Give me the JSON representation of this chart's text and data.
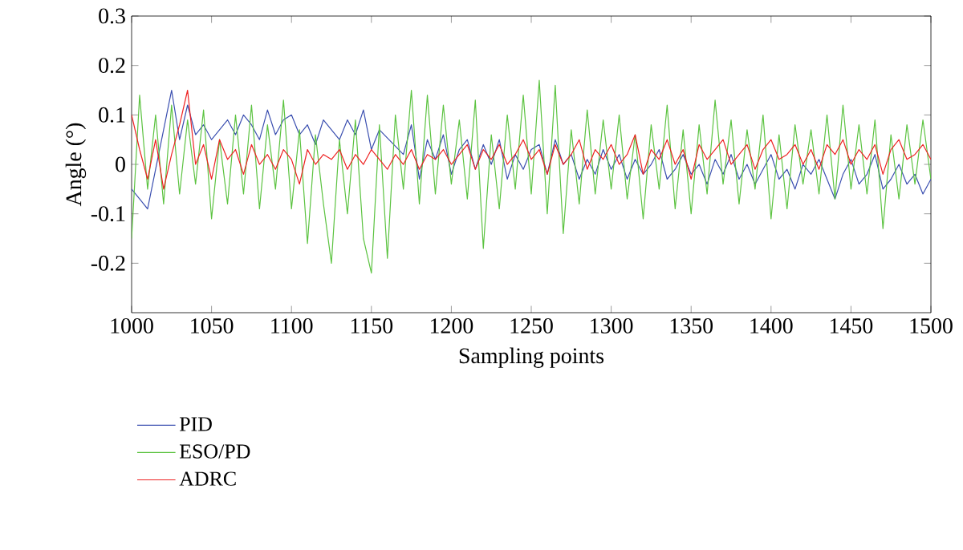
{
  "chart_data": {
    "type": "line",
    "xlabel": "Sampling points",
    "ylabel": "Angle (°)",
    "legend": "bottom",
    "xlim": [
      1000,
      1500
    ],
    "ylim": [
      -0.3,
      0.3
    ],
    "xticks": [
      1000,
      1050,
      1100,
      1150,
      1200,
      1250,
      1300,
      1350,
      1400,
      1450,
      1500
    ],
    "yticks": [
      -0.2,
      -0.1,
      0,
      0.1,
      0.2,
      0.3
    ],
    "x": [
      1000,
      1005,
      1010,
      1015,
      1020,
      1025,
      1030,
      1035,
      1040,
      1045,
      1050,
      1055,
      1060,
      1065,
      1070,
      1075,
      1080,
      1085,
      1090,
      1095,
      1100,
      1105,
      1110,
      1115,
      1120,
      1125,
      1130,
      1135,
      1140,
      1145,
      1150,
      1155,
      1160,
      1165,
      1170,
      1175,
      1180,
      1185,
      1190,
      1195,
      1200,
      1205,
      1210,
      1215,
      1220,
      1225,
      1230,
      1235,
      1240,
      1245,
      1250,
      1255,
      1260,
      1265,
      1270,
      1275,
      1280,
      1285,
      1290,
      1295,
      1300,
      1305,
      1310,
      1315,
      1320,
      1325,
      1330,
      1335,
      1340,
      1345,
      1350,
      1355,
      1360,
      1365,
      1370,
      1375,
      1380,
      1385,
      1390,
      1395,
      1400,
      1405,
      1410,
      1415,
      1420,
      1425,
      1430,
      1435,
      1440,
      1445,
      1450,
      1455,
      1460,
      1465,
      1470,
      1475,
      1480,
      1485,
      1490,
      1495,
      1500
    ],
    "series": [
      {
        "name": "PID",
        "color": "#3b4fb0",
        "values": [
          -0.05,
          -0.07,
          -0.09,
          null,
          null,
          0.15,
          0.05,
          0.12,
          0.06,
          0.08,
          0.05,
          0.07,
          0.09,
          0.06,
          0.1,
          0.08,
          0.05,
          0.11,
          0.06,
          0.09,
          0.1,
          0.06,
          0.08,
          0.04,
          0.09,
          0.07,
          0.05,
          0.09,
          0.06,
          0.11,
          0.03,
          0.07,
          null,
          null,
          0.02,
          0.08,
          -0.03,
          0.05,
          0.01,
          0.06,
          -0.02,
          0.03,
          0.05,
          -0.01,
          0.04,
          0.0,
          0.05,
          -0.03,
          0.02,
          -0.01,
          0.03,
          0.04,
          -0.02,
          0.05,
          0.0,
          0.02,
          -0.03,
          0.01,
          -0.02,
          0.03,
          -0.01,
          0.02,
          -0.03,
          0.01,
          -0.02,
          0.0,
          0.03,
          -0.03,
          -0.01,
          0.02,
          -0.02,
          0.0,
          -0.04,
          0.01,
          -0.02,
          0.02,
          -0.03,
          0.0,
          -0.04,
          -0.01,
          0.02,
          -0.03,
          -0.01,
          -0.05,
          0.0,
          -0.02,
          0.01,
          -0.03,
          -0.07,
          -0.02,
          0.01,
          -0.04,
          -0.02,
          0.02,
          -0.05,
          -0.03,
          0.0,
          -0.04,
          -0.02,
          -0.06,
          -0.03
        ]
      },
      {
        "name": "ESO/PD",
        "color": "#5cc341",
        "values": [
          -0.15,
          0.14,
          -0.05,
          0.1,
          -0.08,
          0.12,
          -0.06,
          0.09,
          -0.04,
          0.11,
          -0.11,
          0.05,
          -0.08,
          0.1,
          -0.06,
          0.12,
          -0.09,
          0.08,
          -0.05,
          0.13,
          -0.09,
          0.07,
          -0.16,
          0.06,
          -0.08,
          -0.2,
          0.05,
          -0.1,
          0.09,
          -0.15,
          -0.22,
          0.08,
          -0.19,
          0.1,
          -0.05,
          0.15,
          -0.08,
          0.14,
          -0.06,
          0.12,
          -0.04,
          0.09,
          -0.07,
          0.13,
          -0.17,
          0.06,
          -0.09,
          0.1,
          -0.05,
          0.14,
          -0.06,
          0.17,
          -0.1,
          0.16,
          -0.14,
          0.07,
          -0.08,
          0.11,
          -0.06,
          0.09,
          -0.05,
          0.1,
          -0.07,
          0.06,
          -0.11,
          0.08,
          -0.05,
          0.12,
          -0.09,
          0.07,
          -0.1,
          0.08,
          -0.06,
          0.13,
          -0.04,
          0.09,
          -0.08,
          0.07,
          -0.05,
          0.1,
          -0.11,
          0.06,
          -0.09,
          0.08,
          -0.04,
          0.07,
          -0.06,
          0.1,
          -0.07,
          0.12,
          -0.05,
          0.08,
          -0.06,
          0.09,
          -0.13,
          0.06,
          -0.07,
          0.08,
          -0.04,
          0.09,
          -0.03
        ]
      },
      {
        "name": "ADRC",
        "color": "#ee2222",
        "values": [
          0.1,
          0.03,
          -0.03,
          0.05,
          -0.05,
          0.02,
          0.08,
          0.15,
          0.0,
          0.04,
          -0.03,
          0.05,
          0.01,
          0.03,
          -0.02,
          0.04,
          0.0,
          0.02,
          -0.01,
          0.03,
          0.01,
          -0.04,
          0.03,
          0.0,
          0.02,
          0.01,
          0.03,
          -0.01,
          0.02,
          0.0,
          0.03,
          0.01,
          -0.01,
          0.02,
          0.0,
          0.03,
          -0.01,
          0.02,
          0.01,
          0.03,
          0.0,
          0.02,
          0.04,
          -0.01,
          0.03,
          0.01,
          0.04,
          0.0,
          0.02,
          0.05,
          0.01,
          0.03,
          -0.02,
          0.04,
          0.0,
          0.02,
          0.05,
          -0.01,
          0.03,
          0.01,
          0.04,
          0.0,
          0.02,
          0.06,
          -0.02,
          0.03,
          0.01,
          0.05,
          0.0,
          0.03,
          -0.03,
          0.04,
          0.01,
          0.03,
          0.05,
          0.0,
          0.02,
          0.04,
          -0.01,
          0.03,
          0.05,
          0.01,
          0.02,
          0.04,
          0.0,
          0.03,
          -0.01,
          0.04,
          0.02,
          0.05,
          0.0,
          0.03,
          0.01,
          0.04,
          -0.02,
          0.03,
          0.05,
          0.01,
          0.02,
          0.04,
          0.01
        ]
      }
    ]
  }
}
